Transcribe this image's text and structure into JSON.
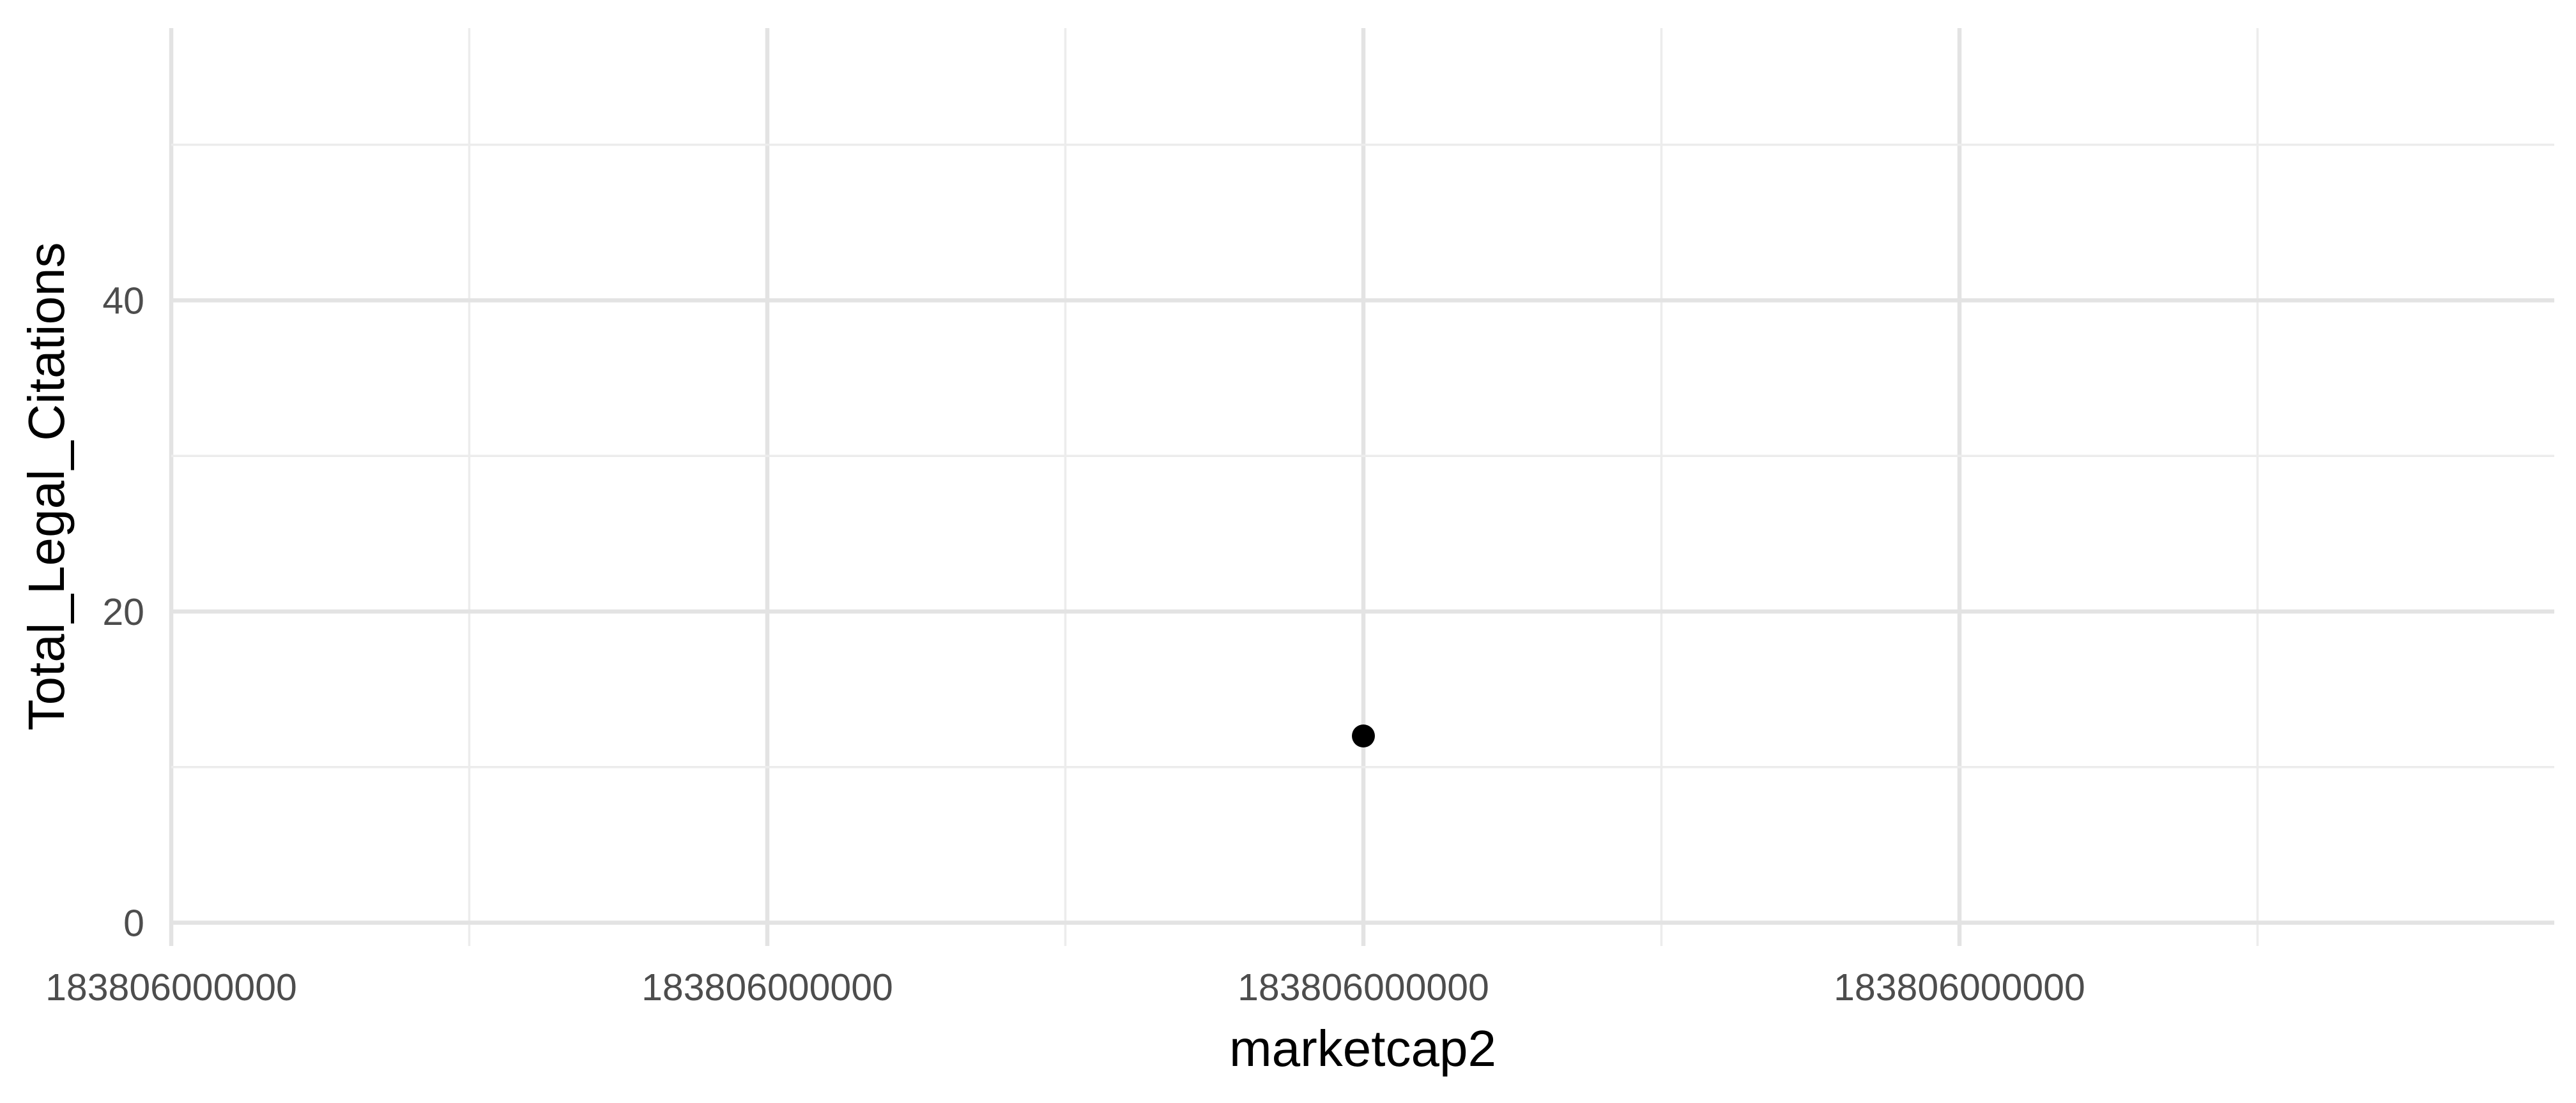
{
  "chart_data": {
    "type": "scatter",
    "title": "",
    "xlabel": "marketcap2",
    "ylabel": "Total_Legal_Citations",
    "x_tick_labels": [
      "183806000000",
      "183806000000",
      "183806000000",
      "183806000000"
    ],
    "y_ticks": [
      0,
      20,
      40
    ],
    "y_tick_labels": [
      "0",
      "20",
      "40"
    ],
    "ylim": [
      -1.5,
      57.5
    ],
    "grid": true,
    "point_color": "#000000",
    "points": [
      {
        "x": "183806000000",
        "y": 12
      }
    ]
  }
}
